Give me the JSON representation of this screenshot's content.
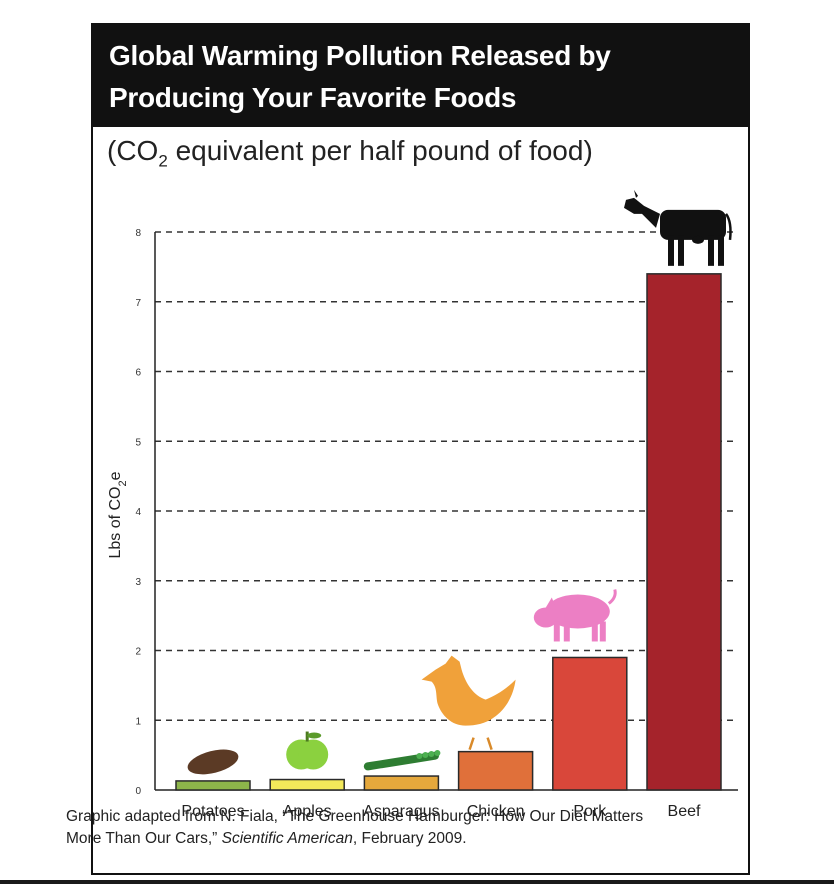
{
  "title_lines": [
    "Global Warming Pollution Released by",
    "Producing Your Favorite Foods"
  ],
  "subtitle": {
    "pre": "(CO",
    "sub": "2",
    "post": " equivalent per half pound of food)"
  },
  "source": {
    "pre": "Graphic adapted from N. Fiala, “The Greenhouse Hamburger: How Our Diet Matters More Than Our Cars,” ",
    "publication": "Scientific American",
    "post": ", February 2009."
  },
  "chart_data": {
    "type": "bar",
    "title": "Global Warming Pollution Released by Producing Your Favorite Foods",
    "subtitle": "(CO2 equivalent per half pound of food)",
    "ylabel": "Lbs of CO2e",
    "xlabel": "",
    "ylim": [
      0,
      8
    ],
    "yticks": [
      0,
      1,
      2,
      3,
      4,
      5,
      6,
      7,
      8
    ],
    "grid": true,
    "categories": [
      "Potatoes",
      "Apples",
      "Asparagus",
      "Chicken",
      "Pork",
      "Beef"
    ],
    "values": [
      0.13,
      0.15,
      0.2,
      0.55,
      1.9,
      7.4
    ],
    "colors": [
      "#8db54a",
      "#f3e95a",
      "#e5a83c",
      "#e0703a",
      "#d9473a",
      "#a5232b"
    ],
    "icons": [
      "potato-icon",
      "apple-icon",
      "asparagus-icon",
      "chicken-icon",
      "pig-icon",
      "cow-icon"
    ]
  }
}
